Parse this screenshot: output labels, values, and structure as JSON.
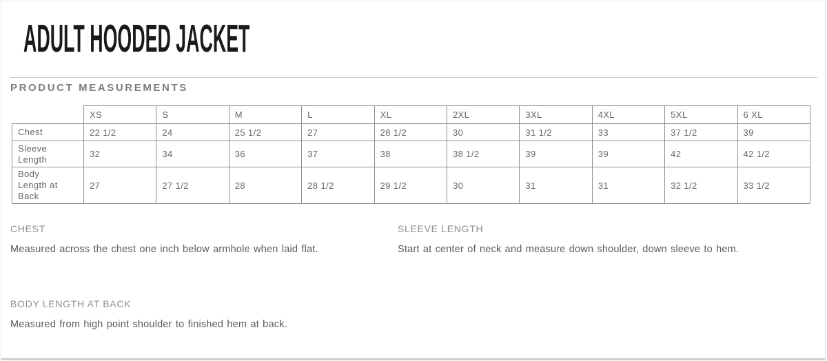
{
  "title": "ADULT HOODED JACKET",
  "measurements_heading": "PRODUCT MEASUREMENTS",
  "table": {
    "sizes": [
      "XS",
      "S",
      "M",
      "L",
      "XL",
      "2XL",
      "3XL",
      "4XL",
      "5XL",
      "6 XL"
    ],
    "rows": [
      {
        "label": "Chest",
        "values": [
          "22 1/2",
          "24",
          "25 1/2",
          "27",
          "28 1/2",
          "30",
          "31 1/2",
          "33",
          "37 1/2",
          "39"
        ]
      },
      {
        "label": "Sleeve Length",
        "values": [
          "32",
          "34",
          "36",
          "37",
          "38",
          "38 1/2",
          "39",
          "39",
          "42",
          "42 1/2"
        ]
      },
      {
        "label": "Body Length at Back",
        "values": [
          "27",
          "27 1/2",
          "28",
          "28 1/2",
          "29 1/2",
          "30",
          "31",
          "31",
          "32 1/2",
          "33 1/2"
        ]
      }
    ]
  },
  "definitions": [
    {
      "heading": "CHEST",
      "text": "Measured across the chest one inch below armhole when laid flat."
    },
    {
      "heading": "SLEEVE LENGTH",
      "text": "Start at center of neck and measure down shoulder, down sleeve to hem."
    },
    {
      "heading": "BODY LENGTH AT BACK",
      "text": "Measured from high point shoulder to finished hem at back."
    }
  ],
  "colors": {
    "title_text": "#1a1a1a",
    "heading_gray": "#7c7c7c",
    "table_border": "#8f8f8f",
    "table_text": "#666666",
    "body_text": "#5a5a5a",
    "divider": "#cbcbcb",
    "page_border": "#e3e3e3",
    "bottom_rule": "#cfcfcf"
  }
}
